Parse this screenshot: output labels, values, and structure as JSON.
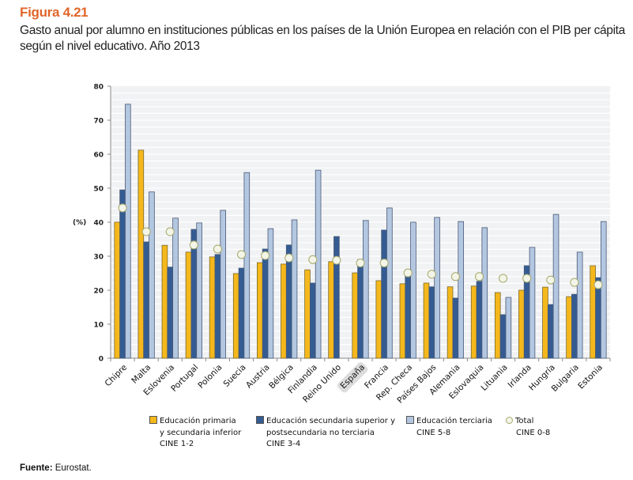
{
  "figure": {
    "label": "Figura 4.21",
    "title": "Gasto anual por alumno en instituciones públicas en los países de la Unión Europea en relación con el PIB per cápita según el nivel educativo. Año 2013"
  },
  "source": {
    "label": "Fuente:",
    "text": "Eurostat."
  },
  "colors": {
    "primaria": "#F5B81C",
    "secundaria": "#345C92",
    "terciaria": "#B4C7E0",
    "total_fill": "#F3F5E8",
    "total_stroke": "#A7A86A",
    "highlight": "#DCDCDC"
  },
  "chart_data": {
    "type": "bar",
    "title": "",
    "xlabel": "",
    "ylabel": "(%)",
    "ylim": [
      0,
      80
    ],
    "yticks": [
      0,
      10,
      20,
      30,
      40,
      50,
      60,
      70,
      80
    ],
    "grid": true,
    "legend_position": "bottom",
    "highlighted_category": "España",
    "categories": [
      "Chipre",
      "Malta",
      "Eslovenia",
      "Portugal",
      "Polonia",
      "Suecia",
      "Austria",
      "Bélgica",
      "Finlandia",
      "Reino Unido",
      "España",
      "Francia",
      "Rep. Checa",
      "Países Bajos",
      "Alemania",
      "Eslovaquia",
      "Lituania",
      "Irlanda",
      "Hungría",
      "Bulgaria",
      "Estonia"
    ],
    "series": [
      {
        "name": "Educación primaria y secundaria inferior CINE 1-2",
        "key": "primaria",
        "type": "bar",
        "values": [
          40.0,
          61.2,
          33.2,
          31.2,
          29.8,
          24.9,
          28.1,
          27.7,
          26.0,
          28.4,
          25.1,
          22.8,
          21.9,
          22.1,
          21.0,
          21.2,
          19.3,
          20.0,
          20.9,
          18.1,
          27.2
        ]
      },
      {
        "name": "Educación secundaria superior y postsecundaria no terciaria CINE 3-4",
        "key": "secundaria",
        "type": "bar",
        "values": [
          49.5,
          34.2,
          26.8,
          37.9,
          30.5,
          26.5,
          32.1,
          33.3,
          22.1,
          35.8,
          29.0,
          37.7,
          26.0,
          21.0,
          17.7,
          22.6,
          12.8,
          27.2,
          15.8,
          18.8,
          23.7
        ]
      },
      {
        "name": "Educación terciaria CINE 5-8",
        "key": "terciaria",
        "type": "bar",
        "values": [
          74.7,
          48.9,
          41.2,
          39.8,
          43.5,
          54.6,
          38.1,
          40.7,
          55.3,
          null,
          40.5,
          44.2,
          40.0,
          41.4,
          40.2,
          38.4,
          17.9,
          32.6,
          42.3,
          31.2,
          40.2
        ]
      },
      {
        "name": "Total CINE 0-8",
        "key": "total",
        "type": "marker",
        "values": [
          44.2,
          37.2,
          37.2,
          33.3,
          32.1,
          30.5,
          30.2,
          29.5,
          29.0,
          28.8,
          28.0,
          28.0,
          25.1,
          24.7,
          24.0,
          24.0,
          23.5,
          23.5,
          23.0,
          22.3,
          21.6
        ]
      }
    ],
    "legend": [
      {
        "key": "primaria",
        "lines": [
          "Educación primaria",
          "y secundaria inferior",
          "CINE 1-2"
        ]
      },
      {
        "key": "secundaria",
        "lines": [
          "Educación secundaria superior y",
          "postsecundaria no terciaria",
          "CINE 3-4"
        ]
      },
      {
        "key": "terciaria",
        "lines": [
          "Educación terciaria",
          "CINE 5-8"
        ]
      },
      {
        "key": "total",
        "lines": [
          "Total",
          "CINE 0-8"
        ]
      }
    ]
  }
}
